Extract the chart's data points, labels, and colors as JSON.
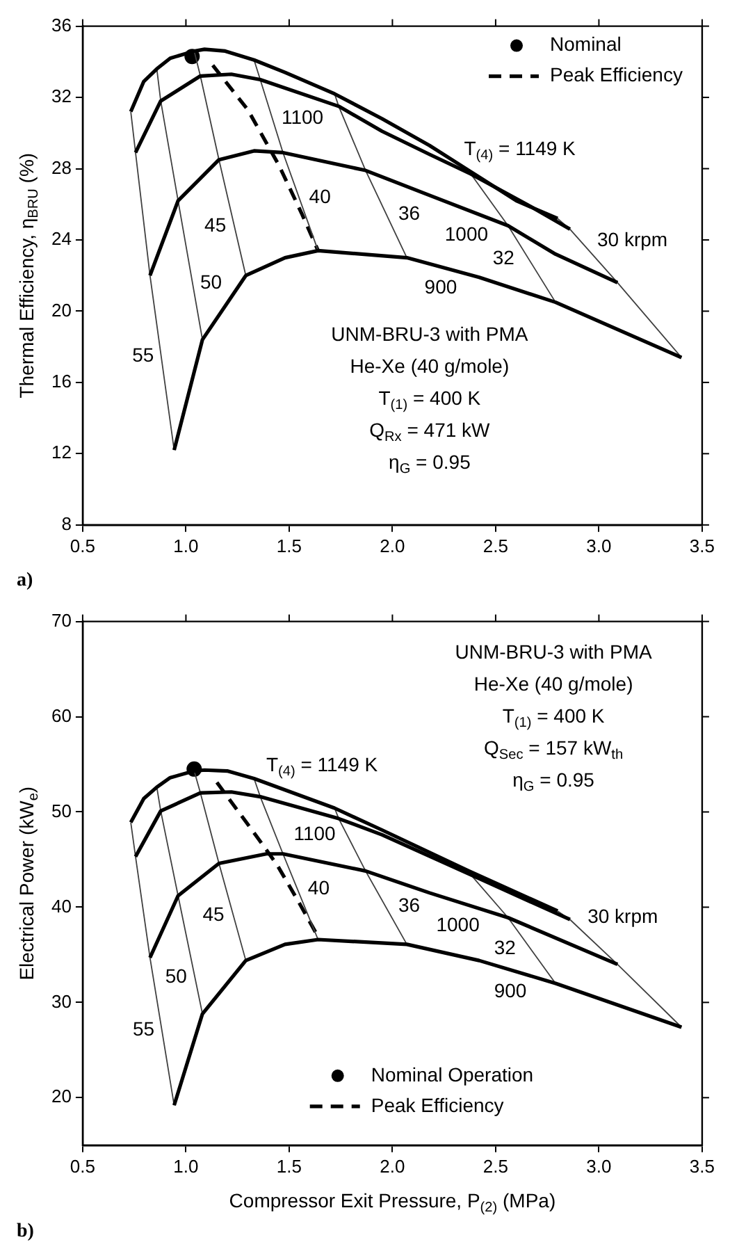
{
  "chart_data": [
    {
      "type": "line",
      "title": "a)",
      "ylabel": "Thermal Efficiency, η$_{BRU}$ (%)",
      "xlim": [
        0.5,
        3.5
      ],
      "xticks": [
        {
          "value": 0.5,
          "label": "0.5"
        },
        {
          "value": 1,
          "label": "1.0"
        },
        {
          "value": 1.5,
          "label": "1.5"
        },
        {
          "value": 2,
          "label": "2.0"
        },
        {
          "value": 2.5,
          "label": "2.5"
        },
        {
          "value": 3,
          "label": "3.0"
        },
        {
          "value": 3.5,
          "label": "3.5"
        }
      ],
      "ylim": [
        8,
        36
      ],
      "yticks": [
        8,
        12,
        16,
        20,
        24,
        28,
        32,
        36
      ],
      "legend": "top right",
      "series": [
        {
          "color": "#000000",
          "x": [
            0.733,
            0.796,
            0.859,
            0.924,
            1.04,
            1.09,
            1.19,
            1.33,
            1.48,
            1.72,
            1.95,
            2.18,
            2.37,
            2.6,
            2.8
          ],
          "values": [
            31.2,
            32.9,
            33.6,
            34.2,
            34.6,
            34.7,
            34.6,
            34.1,
            33.4,
            32.2,
            30.8,
            29.3,
            27.9,
            26.2,
            25.2
          ]
        },
        {
          "color": "#000000",
          "x": [
            0.756,
            0.878,
            1.07,
            1.22,
            1.36,
            1.74,
            1.95,
            2.18,
            2.38,
            2.65,
            2.86
          ],
          "values": [
            28.9,
            31.8,
            33.2,
            33.3,
            33.0,
            31.5,
            30.1,
            28.8,
            27.7,
            26.0,
            24.6
          ]
        },
        {
          "color": "#000000",
          "x": [
            0.826,
            0.962,
            1.16,
            1.33,
            1.47,
            1.87,
            2.18,
            2.56,
            2.79,
            3.09
          ],
          "values": [
            22.0,
            26.2,
            28.5,
            29.0,
            28.9,
            27.9,
            26.5,
            24.8,
            23.2,
            21.6
          ]
        },
        {
          "color": "#000000",
          "x": [
            0.943,
            1.08,
            1.29,
            1.48,
            1.64,
            2.07,
            2.42,
            2.79,
            3.4
          ],
          "values": [
            12.2,
            18.4,
            22.0,
            23.0,
            23.4,
            23.0,
            21.9,
            20.5,
            17.4
          ]
        },
        {
          "color": "#404040",
          "x": [
            0.733,
            0.756,
            0.826,
            0.943
          ],
          "values": [
            31.2,
            28.9,
            22.0,
            12.2
          ]
        },
        {
          "color": "#404040",
          "x": [
            0.859,
            0.878,
            0.962,
            1.08
          ],
          "values": [
            33.6,
            31.8,
            26.2,
            18.4
          ]
        },
        {
          "color": "#404040",
          "x": [
            1.04,
            1.07,
            1.16,
            1.29
          ],
          "values": [
            34.6,
            33.2,
            28.5,
            22.0
          ]
        },
        {
          "color": "#404040",
          "x": [
            1.33,
            1.36,
            1.47,
            1.64
          ],
          "values": [
            34.1,
            33.0,
            28.9,
            23.4
          ]
        },
        {
          "color": "#404040",
          "x": [
            1.72,
            1.74,
            1.87,
            2.07
          ],
          "values": [
            32.2,
            31.5,
            27.9,
            23.0
          ]
        },
        {
          "color": "#404040",
          "x": [
            2.37,
            2.38,
            2.56,
            2.79
          ],
          "values": [
            27.9,
            27.7,
            24.8,
            20.5
          ]
        },
        {
          "color": "#404040",
          "x": [
            2.8,
            2.86,
            3.09,
            3.4
          ],
          "values": [
            25.2,
            24.6,
            21.6,
            17.4
          ]
        },
        {
          "name": "Nominal",
          "type": "scatter",
          "marker": "circle",
          "color": "#000000",
          "x": [
            1.03
          ],
          "values": [
            34.3
          ]
        },
        {
          "name": "Peak Efficiency",
          "color": "#000000",
          "line_style": "dashed",
          "x": [
            1.13,
            1.3,
            1.45,
            1.56,
            1.64
          ],
          "values": [
            33.8,
            31.3,
            28.2,
            25.5,
            23.4
          ]
        }
      ],
      "annotations": [
        {
          "text": "55",
          "x": 0.878,
          "y": 17.6
        },
        {
          "text": "50",
          "x": 1.035,
          "y": 21.4
        },
        {
          "text": "45",
          "x": 1.23,
          "y": 25.0
        },
        {
          "text": "40",
          "x": 1.56,
          "y": 26.0
        },
        {
          "text": "36",
          "x": 1.97,
          "y": 25.5
        },
        {
          "text": "32",
          "x": 2.68,
          "y": 22.5
        },
        {
          "text": "30 krpm",
          "x": 3.02,
          "y": 22.5
        },
        {
          "text": "1100",
          "x": 1.6,
          "y": 32.05
        },
        {
          "text": "1000",
          "x": 2.4,
          "y": 25.52
        },
        {
          "text": "900",
          "x": 2.26,
          "y": 22.4
        },
        {
          "text": "T$_{(4)}$ = 1149 K",
          "x": 2.5,
          "y": 26.94
        },
        "UNM-BRU-3 with PMA",
        "He-Xe (40 g/mole)",
        "T$_{(1)}$ = 400 K",
        "Q$_{Rx}$ = 471 kW",
        "η$_{G}$ = 0.95"
      ]
    },
    {
      "type": "line",
      "title": "b)",
      "xlabel": "Compressor Exit Pressure, P$_{(2)}$ (MPa)",
      "ylabel": "Electrical Power (kW$_{e}$)",
      "xlim": [
        0.5,
        3.5
      ],
      "xticks": [
        {
          "value": 0.5,
          "label": "0.5"
        },
        {
          "value": 1,
          "label": "1.0"
        },
        {
          "value": 1.5,
          "label": "1.5"
        },
        {
          "value": 2,
          "label": "2.0"
        },
        {
          "value": 2.5,
          "label": "2.5"
        },
        {
          "value": 3,
          "label": "3.0"
        },
        {
          "value": 3.5,
          "label": "3.5"
        }
      ],
      "ylim": [
        15,
        70
      ],
      "yticks": [
        20,
        30,
        40,
        50,
        60,
        70
      ],
      "legend": "bottom",
      "series": [
        {
          "color": "#000000",
          "x": [
            0.733,
            0.796,
            0.859,
            0.924,
            1.04,
            1.09,
            1.2,
            1.33,
            1.72,
            1.95,
            2.37,
            2.8
          ],
          "values": [
            48.9,
            51.4,
            52.6,
            53.6,
            54.3,
            54.4,
            54.3,
            53.5,
            50.4,
            48.1,
            43.8,
            39.6
          ]
        },
        {
          "color": "#000000",
          "x": [
            0.756,
            0.878,
            1.07,
            1.22,
            1.36,
            1.74,
            1.95,
            2.38,
            2.86
          ],
          "values": [
            45.3,
            50.1,
            52.0,
            52.1,
            51.6,
            49.3,
            47.6,
            43.4,
            38.7
          ]
        },
        {
          "color": "#000000",
          "x": [
            0.826,
            0.962,
            1.16,
            1.39,
            1.47,
            1.87,
            2.18,
            2.56,
            3.09
          ],
          "values": [
            34.7,
            41.2,
            44.6,
            45.6,
            45.6,
            43.8,
            41.5,
            38.9,
            34.0
          ]
        },
        {
          "color": "#000000",
          "x": [
            0.943,
            1.08,
            1.29,
            1.48,
            1.64,
            2.07,
            2.42,
            2.79,
            3.4
          ],
          "values": [
            19.2,
            28.8,
            34.4,
            36.1,
            36.6,
            36.1,
            34.4,
            32.0,
            27.4
          ]
        },
        {
          "color": "#404040",
          "x": [
            0.733,
            0.756,
            0.826,
            0.943
          ],
          "values": [
            48.9,
            45.3,
            34.7,
            19.2
          ]
        },
        {
          "color": "#404040",
          "x": [
            0.859,
            0.878,
            0.962,
            1.08
          ],
          "values": [
            52.6,
            50.1,
            41.2,
            28.8
          ]
        },
        {
          "color": "#404040",
          "x": [
            1.04,
            1.07,
            1.16,
            1.29
          ],
          "values": [
            54.3,
            52.0,
            44.6,
            34.4
          ]
        },
        {
          "color": "#404040",
          "x": [
            1.33,
            1.36,
            1.47,
            1.64
          ],
          "values": [
            53.5,
            51.6,
            45.6,
            36.6
          ]
        },
        {
          "color": "#404040",
          "x": [
            1.72,
            1.74,
            1.87,
            2.07
          ],
          "values": [
            50.4,
            49.3,
            43.8,
            36.1
          ]
        },
        {
          "color": "#404040",
          "x": [
            2.37,
            2.38,
            2.56,
            2.79
          ],
          "values": [
            43.8,
            43.4,
            38.9,
            32.0
          ]
        },
        {
          "color": "#404040",
          "x": [
            2.8,
            2.86,
            3.09,
            3.4
          ],
          "values": [
            39.6,
            38.7,
            34.0,
            27.4
          ]
        },
        {
          "name": "Nominal Operation",
          "type": "scatter",
          "marker": "circle",
          "color": "#000000",
          "x": [
            1.04
          ],
          "values": [
            54.5
          ]
        },
        {
          "name": "Peak Efficiency",
          "color": "#000000",
          "line_style": "dashed",
          "x": [
            1.15,
            1.32,
            1.44,
            1.55,
            1.64
          ],
          "values": [
            53.1,
            48.1,
            44.5,
            40.4,
            36.9
          ]
        }
      ],
      "annotations": [
        {
          "text": "55",
          "x": 0.881,
          "y": 27.4
        },
        {
          "text": "50",
          "x": 1.04,
          "y": 33.0
        },
        {
          "text": "45",
          "x": 1.222,
          "y": 39.7
        },
        {
          "text": "40",
          "x": 1.534,
          "y": 42.2
        },
        {
          "text": "36",
          "x": 1.995,
          "y": 39.0
        },
        {
          "text": "32",
          "x": 2.69,
          "y": 35.0
        },
        {
          "text": "30 krpm",
          "x": 2.99,
          "y": 36.0
        },
        {
          "text": "1100",
          "x": 1.6,
          "y": 50.15
        },
        {
          "text": "1000",
          "x": 2.35,
          "y": 40.34
        },
        {
          "text": "900",
          "x": 2.6,
          "y": 33.23
        },
        {
          "text": "T$_{(4)}$ = 1149 K",
          "x": 1.6,
          "y": 51.35
        },
        "UNM-BRU-3 with PMA",
        "He-Xe (40 g/mole)",
        "T$_{(1)}$ = 400 K",
        "Q$_{Sec}$ = 157 kW$_{th}$",
        "η$_{G}$ = 0.95"
      ]
    }
  ]
}
